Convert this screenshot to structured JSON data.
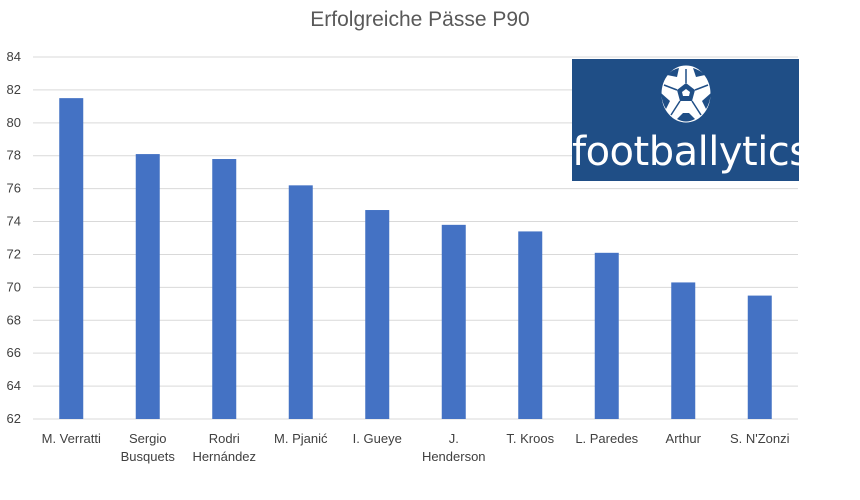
{
  "chart_data": {
    "type": "bar",
    "title": "Erfolgreiche Pässe P90",
    "categories": [
      [
        "M. Verratti"
      ],
      [
        "Sergio",
        "Busquets"
      ],
      [
        "Rodri",
        "Hernández"
      ],
      [
        "M. Pjanić"
      ],
      [
        "I. Gueye"
      ],
      [
        "J.",
        "Henderson"
      ],
      [
        "T. Kroos"
      ],
      [
        "L. Paredes"
      ],
      [
        "Arthur"
      ],
      [
        "S. N'Zonzi"
      ]
    ],
    "values": [
      81.5,
      78.1,
      77.8,
      76.2,
      74.7,
      73.8,
      73.4,
      72.1,
      70.3,
      69.5
    ],
    "ylim": [
      62,
      84
    ],
    "yticks": [
      62,
      64,
      66,
      68,
      70,
      72,
      74,
      76,
      78,
      80,
      82,
      84
    ],
    "grid": true,
    "bar_color": "#4472c4",
    "grid_color": "#d9d9d9"
  },
  "logo": {
    "text": "footballytics",
    "background": "#1f4e86",
    "icon": "soccer-ball-icon"
  }
}
